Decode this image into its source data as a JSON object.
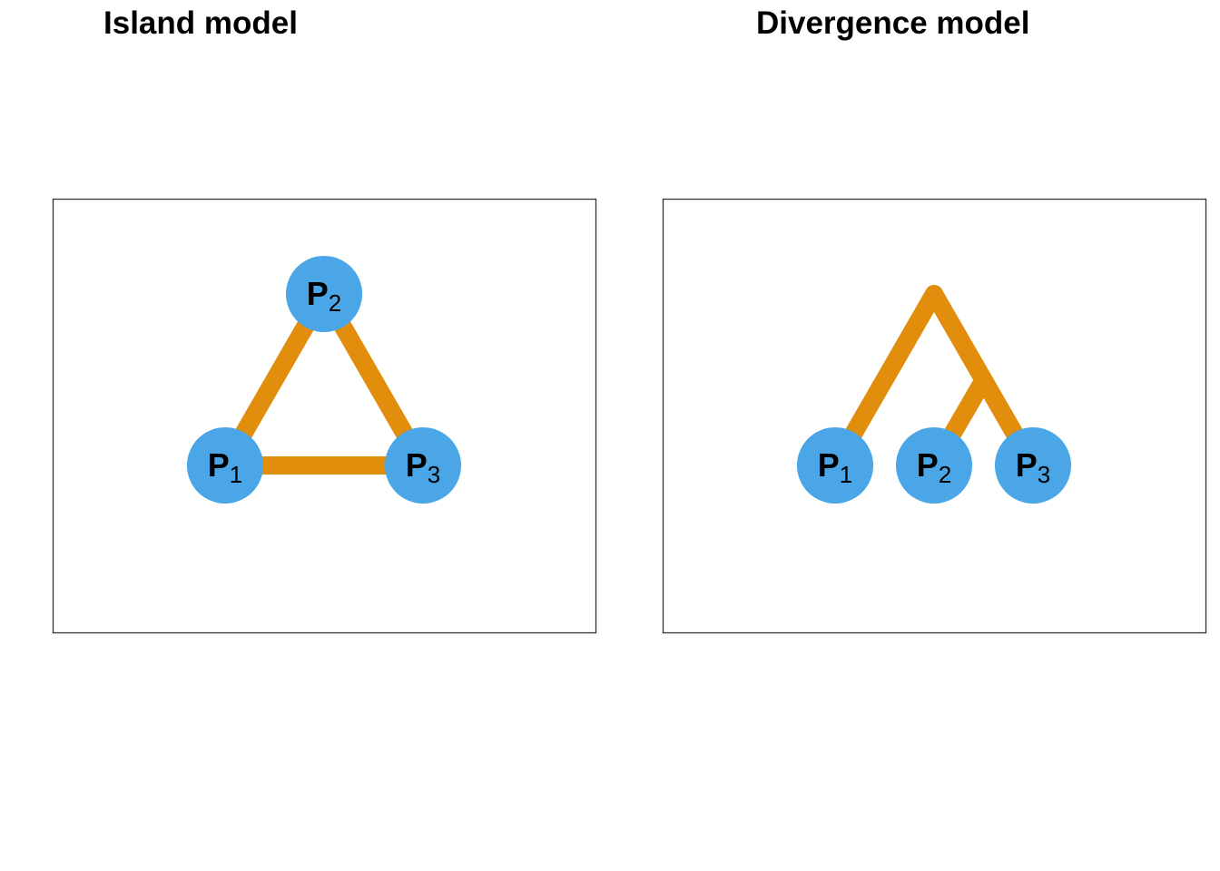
{
  "colors": {
    "edge": "#E08E0B",
    "node": "#4AA6E6",
    "frame": "#333333",
    "text": "#000000"
  },
  "panels": [
    {
      "title": "Island model",
      "nodes": [
        {
          "letter": "P",
          "index": "1"
        },
        {
          "letter": "P",
          "index": "2"
        },
        {
          "letter": "P",
          "index": "3"
        }
      ]
    },
    {
      "title": "Divergence model",
      "nodes": [
        {
          "letter": "P",
          "index": "1"
        },
        {
          "letter": "P",
          "index": "2"
        },
        {
          "letter": "P",
          "index": "3"
        }
      ]
    }
  ]
}
